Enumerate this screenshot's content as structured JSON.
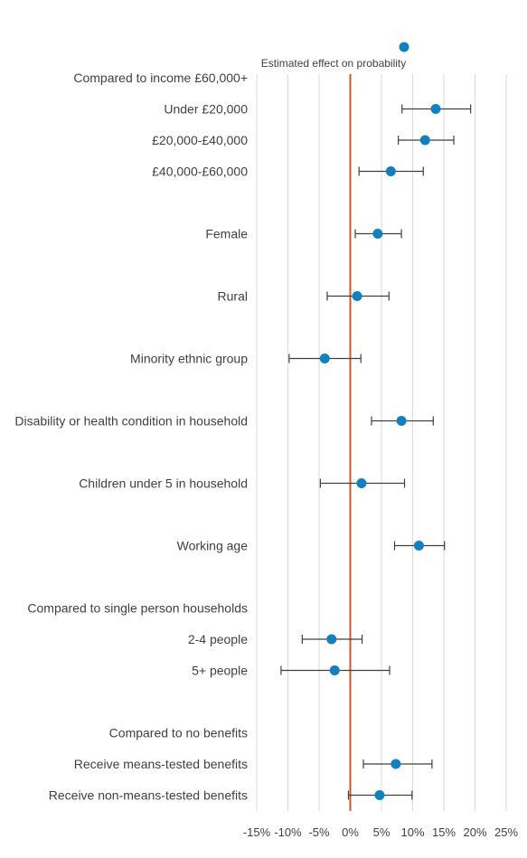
{
  "chart_data": {
    "type": "scatter",
    "orientation": "horizontal",
    "legend": {
      "position": "top",
      "entries": [
        "Estimated effect on probability"
      ]
    },
    "xlim": [
      -15,
      25
    ],
    "x_ticks": [
      {
        "value": -15,
        "label": "-15%"
      },
      {
        "value": -10,
        "label": "-10%"
      },
      {
        "value": -5,
        "label": "-5%"
      },
      {
        "value": 0,
        "label": "0%"
      },
      {
        "value": 5,
        "label": "5%"
      },
      {
        "value": 10,
        "label": "10%"
      },
      {
        "value": 15,
        "label": "15%"
      },
      {
        "value": 20,
        "label": "20%"
      },
      {
        "value": 25,
        "label": "25%"
      }
    ],
    "grid": true,
    "reference_line": {
      "x": 0,
      "color": "#C65A2E"
    },
    "marker_color": "#1380BE",
    "error_bar_color": "#404040",
    "grid_color": "#D9D9D9",
    "rows": [
      {
        "label": "Compared to income £60,000+",
        "header": true
      },
      {
        "label": "Under £20,000",
        "value": 13.7,
        "low": 8.3,
        "high": 19.3
      },
      {
        "label": "£20,000-£40,000",
        "value": 12.0,
        "low": 7.7,
        "high": 16.6
      },
      {
        "label": "£40,000-£60,000",
        "value": 6.5,
        "low": 1.4,
        "high": 11.7
      },
      {
        "label": "",
        "spacer": true
      },
      {
        "label": "Female",
        "value": 4.4,
        "low": 0.8,
        "high": 8.2
      },
      {
        "label": "",
        "spacer": true
      },
      {
        "label": "Rural",
        "value": 1.1,
        "low": -3.7,
        "high": 6.2
      },
      {
        "label": "",
        "spacer": true
      },
      {
        "label": "Minority ethnic group",
        "value": -4.1,
        "low": -9.8,
        "high": 1.7
      },
      {
        "label": "",
        "spacer": true
      },
      {
        "label": "Disability or health condition in household",
        "value": 8.2,
        "low": 3.4,
        "high": 13.3
      },
      {
        "label": "",
        "spacer": true
      },
      {
        "label": "Children under 5 in household",
        "value": 1.8,
        "low": -4.8,
        "high": 8.7
      },
      {
        "label": "",
        "spacer": true
      },
      {
        "label": "Working age",
        "value": 11.0,
        "low": 7.1,
        "high": 15.1
      },
      {
        "label": "",
        "spacer": true
      },
      {
        "label": "Compared to single person households",
        "header": true
      },
      {
        "label": "2-4 people",
        "value": -3.0,
        "low": -7.7,
        "high": 1.9
      },
      {
        "label": "5+ people",
        "value": -2.5,
        "low": -11.1,
        "high": 6.3
      },
      {
        "label": "",
        "spacer": true
      },
      {
        "label": "Compared to no benefits",
        "header": true
      },
      {
        "label": "Receive means-tested benefits",
        "value": 7.3,
        "low": 2.1,
        "high": 13.1
      },
      {
        "label": "Receive non-means-tested benefits",
        "value": 4.7,
        "low": -0.3,
        "high": 9.9
      }
    ]
  }
}
